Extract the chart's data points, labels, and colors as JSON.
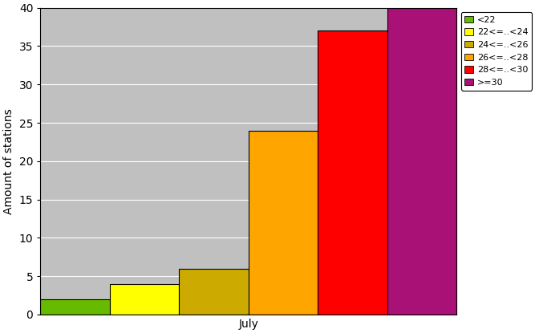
{
  "bars": [
    {
      "label": "<22",
      "value": 2,
      "color": "#66BB00"
    },
    {
      "label": "22<=..<24",
      "value": 4,
      "color": "#FFFF00"
    },
    {
      "label": "24<=..<26",
      "value": 6,
      "color": "#CCAA00"
    },
    {
      "label": "26<=..<28",
      "value": 24,
      "color": "#FFA500"
    },
    {
      "label": "28<=..<30",
      "value": 37,
      "color": "#FF0000"
    },
    {
      "label": ">=30",
      "value": 40,
      "color": "#AA1177"
    }
  ],
  "ylabel": "Amount of stations",
  "xlabel": "July",
  "ylim": [
    0,
    40
  ],
  "yticks": [
    0,
    5,
    10,
    15,
    20,
    25,
    30,
    35,
    40
  ],
  "background_color": "#C0C0C0",
  "bar_edge_color": "#000000",
  "grid_color": "#AAAAAA",
  "legend_fontsize": 8
}
